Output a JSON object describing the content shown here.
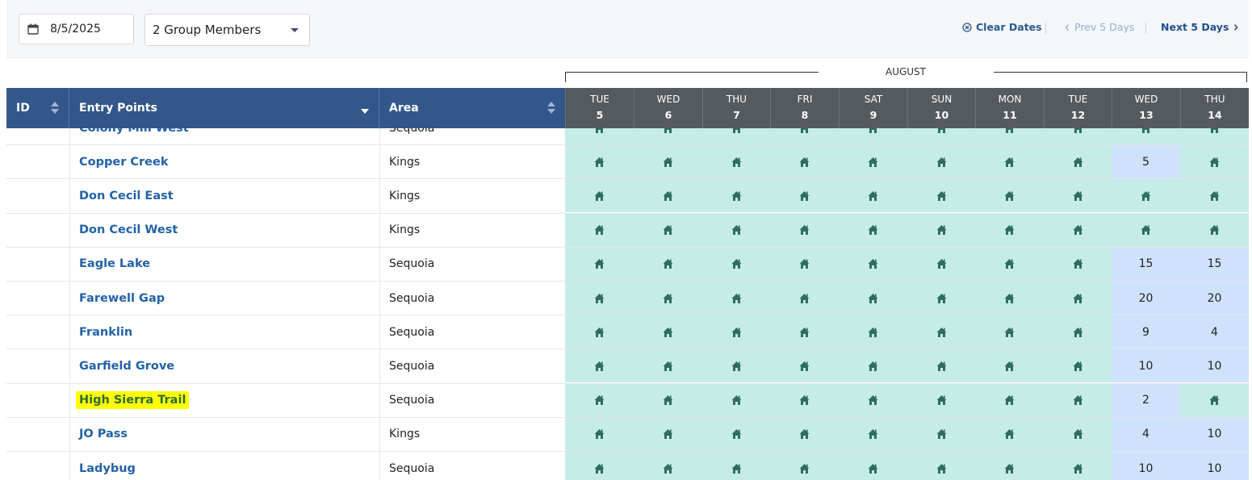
{
  "toolbar": {
    "date": "8/5/2025",
    "group": "2 Group Members",
    "clear": "Clear Dates",
    "prev": "Prev 5 Days",
    "next": "Next 5 Days"
  },
  "month": "AUGUST",
  "columns": {
    "id": "ID",
    "entry": "Entry Points",
    "area": "Area"
  },
  "days": [
    {
      "dow": "TUE",
      "num": "5"
    },
    {
      "dow": "WED",
      "num": "6"
    },
    {
      "dow": "THU",
      "num": "7"
    },
    {
      "dow": "FRI",
      "num": "8"
    },
    {
      "dow": "SAT",
      "num": "9"
    },
    {
      "dow": "SUN",
      "num": "10"
    },
    {
      "dow": "MON",
      "num": "11"
    },
    {
      "dow": "TUE",
      "num": "12"
    },
    {
      "dow": "WED",
      "num": "13"
    },
    {
      "dow": "THU",
      "num": "14"
    }
  ],
  "colors": {
    "header_blue": "#33578b",
    "day_header": "#555a5f",
    "available_cell": "#c5ece6",
    "count_cell": "#cfe2fb",
    "link": "#2362a8",
    "highlight": "#ffff00",
    "house_icon": "#2f6e5e"
  },
  "rows": [
    {
      "name": "Colony Mill West",
      "area": "Sequoia",
      "cells": [
        "H",
        "H",
        "H",
        "H",
        "H",
        "H",
        "H",
        "H",
        "H",
        "H"
      ],
      "partial": true
    },
    {
      "name": "Copper Creek",
      "area": "Kings",
      "cells": [
        "H",
        "H",
        "H",
        "H",
        "H",
        "H",
        "H",
        "H",
        "5",
        "H"
      ]
    },
    {
      "name": "Don Cecil East",
      "area": "Kings",
      "cells": [
        "H",
        "H",
        "H",
        "H",
        "H",
        "H",
        "H",
        "H",
        "H",
        "H"
      ]
    },
    {
      "name": "Don Cecil West",
      "area": "Kings",
      "cells": [
        "H",
        "H",
        "H",
        "H",
        "H",
        "H",
        "H",
        "H",
        "H",
        "H"
      ]
    },
    {
      "name": "Eagle Lake",
      "area": "Sequoia",
      "cells": [
        "H",
        "H",
        "H",
        "H",
        "H",
        "H",
        "H",
        "H",
        "15",
        "15"
      ]
    },
    {
      "name": "Farewell Gap",
      "area": "Sequoia",
      "cells": [
        "H",
        "H",
        "H",
        "H",
        "H",
        "H",
        "H",
        "H",
        "20",
        "20"
      ]
    },
    {
      "name": "Franklin",
      "area": "Sequoia",
      "cells": [
        "H",
        "H",
        "H",
        "H",
        "H",
        "H",
        "H",
        "H",
        "9",
        "4"
      ]
    },
    {
      "name": "Garfield Grove",
      "area": "Sequoia",
      "cells": [
        "H",
        "H",
        "H",
        "H",
        "H",
        "H",
        "H",
        "H",
        "10",
        "10"
      ]
    },
    {
      "name": "High Sierra Trail",
      "area": "Sequoia",
      "cells": [
        "H",
        "H",
        "H",
        "H",
        "H",
        "H",
        "H",
        "H",
        "2",
        "H"
      ],
      "highlight": true
    },
    {
      "name": "JO Pass",
      "area": "Kings",
      "cells": [
        "H",
        "H",
        "H",
        "H",
        "H",
        "H",
        "H",
        "H",
        "4",
        "10"
      ]
    },
    {
      "name": "Ladybug",
      "area": "Sequoia",
      "cells": [
        "H",
        "H",
        "H",
        "H",
        "H",
        "H",
        "H",
        "H",
        "10",
        "10"
      ]
    }
  ]
}
